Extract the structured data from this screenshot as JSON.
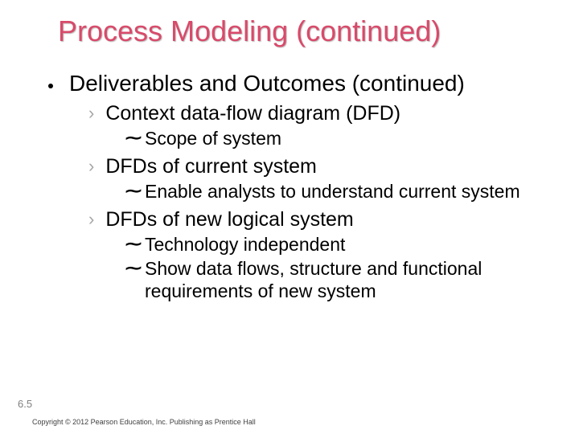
{
  "title": "Process Modeling (continued)",
  "lvl1": "Deliverables and Outcomes (continued)",
  "sec1": {
    "h": "Context data-flow diagram (DFD)",
    "items": [
      "Scope of system"
    ]
  },
  "sec2": {
    "h": "DFDs of current system",
    "items": [
      "Enable analysts to understand current system"
    ]
  },
  "sec3": {
    "h": "DFDs of new logical system",
    "items": [
      "Technology independent",
      "Show data flows, structure and functional requirements of new system"
    ]
  },
  "slideNumber": "6.5",
  "copyright": "Copyright © 2012 Pearson Education, Inc. Publishing as Prentice Hall",
  "colors": {
    "title": "#d94a6a",
    "chevron": "#a6a6a6",
    "slideNum": "#808080",
    "text": "#000000",
    "bg": "#ffffff"
  },
  "fontSizes": {
    "title": 36,
    "lvl1": 28,
    "lvl2": 25,
    "lvl3": 23,
    "slideNum": 13,
    "copyright": 9
  }
}
